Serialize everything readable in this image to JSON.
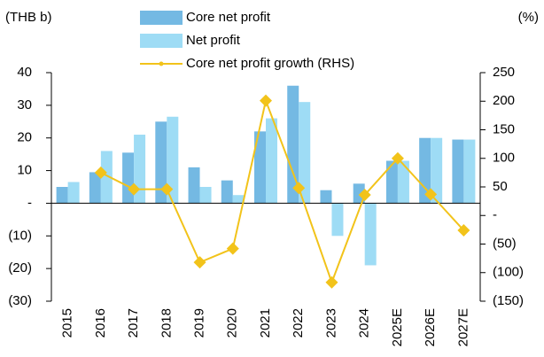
{
  "chart_data": {
    "type": "bar",
    "left_unit": "(THB b)",
    "right_unit": "(%)",
    "categories": [
      "2015",
      "2016",
      "2017",
      "2018",
      "2019",
      "2020",
      "2021",
      "2022",
      "2023",
      "2024",
      "2025E",
      "2026E",
      "2027E"
    ],
    "series": [
      {
        "name": "Core net profit",
        "color": "#74b9e3",
        "values": [
          5,
          9.5,
          15.5,
          25,
          11,
          7,
          22,
          36,
          4,
          6,
          13,
          20,
          19.5
        ]
      },
      {
        "name": "Net profit",
        "color": "#9edcf5",
        "values": [
          6.5,
          16,
          21,
          26.5,
          5,
          2.5,
          26,
          31,
          -10,
          -19,
          13,
          20,
          19.5
        ]
      },
      {
        "name": "Core net profit growth (RHS)",
        "color": "#f2c31a",
        "type": "line",
        "axis": "y2",
        "values": [
          null,
          75,
          46,
          46,
          -82,
          -58,
          201,
          48,
          -117,
          36,
          100,
          37,
          -26
        ]
      }
    ],
    "ylim": [
      -30,
      40
    ],
    "yticks": [
      40,
      30,
      20,
      10,
      {
        "value": 0,
        "label": "-"
      },
      {
        "value": -10,
        "label": "(10)"
      },
      {
        "value": -20,
        "label": "(20)"
      },
      {
        "value": -30,
        "label": "(30)"
      }
    ],
    "y2lim": [
      -150,
      250
    ],
    "y2ticks": [
      250,
      200,
      150,
      100,
      50,
      {
        "value": 0,
        "label": "-"
      },
      {
        "value": -50,
        "label": "(50)"
      },
      {
        "value": -100,
        "label": "(100)"
      },
      {
        "value": -150,
        "label": "(150)"
      }
    ]
  }
}
